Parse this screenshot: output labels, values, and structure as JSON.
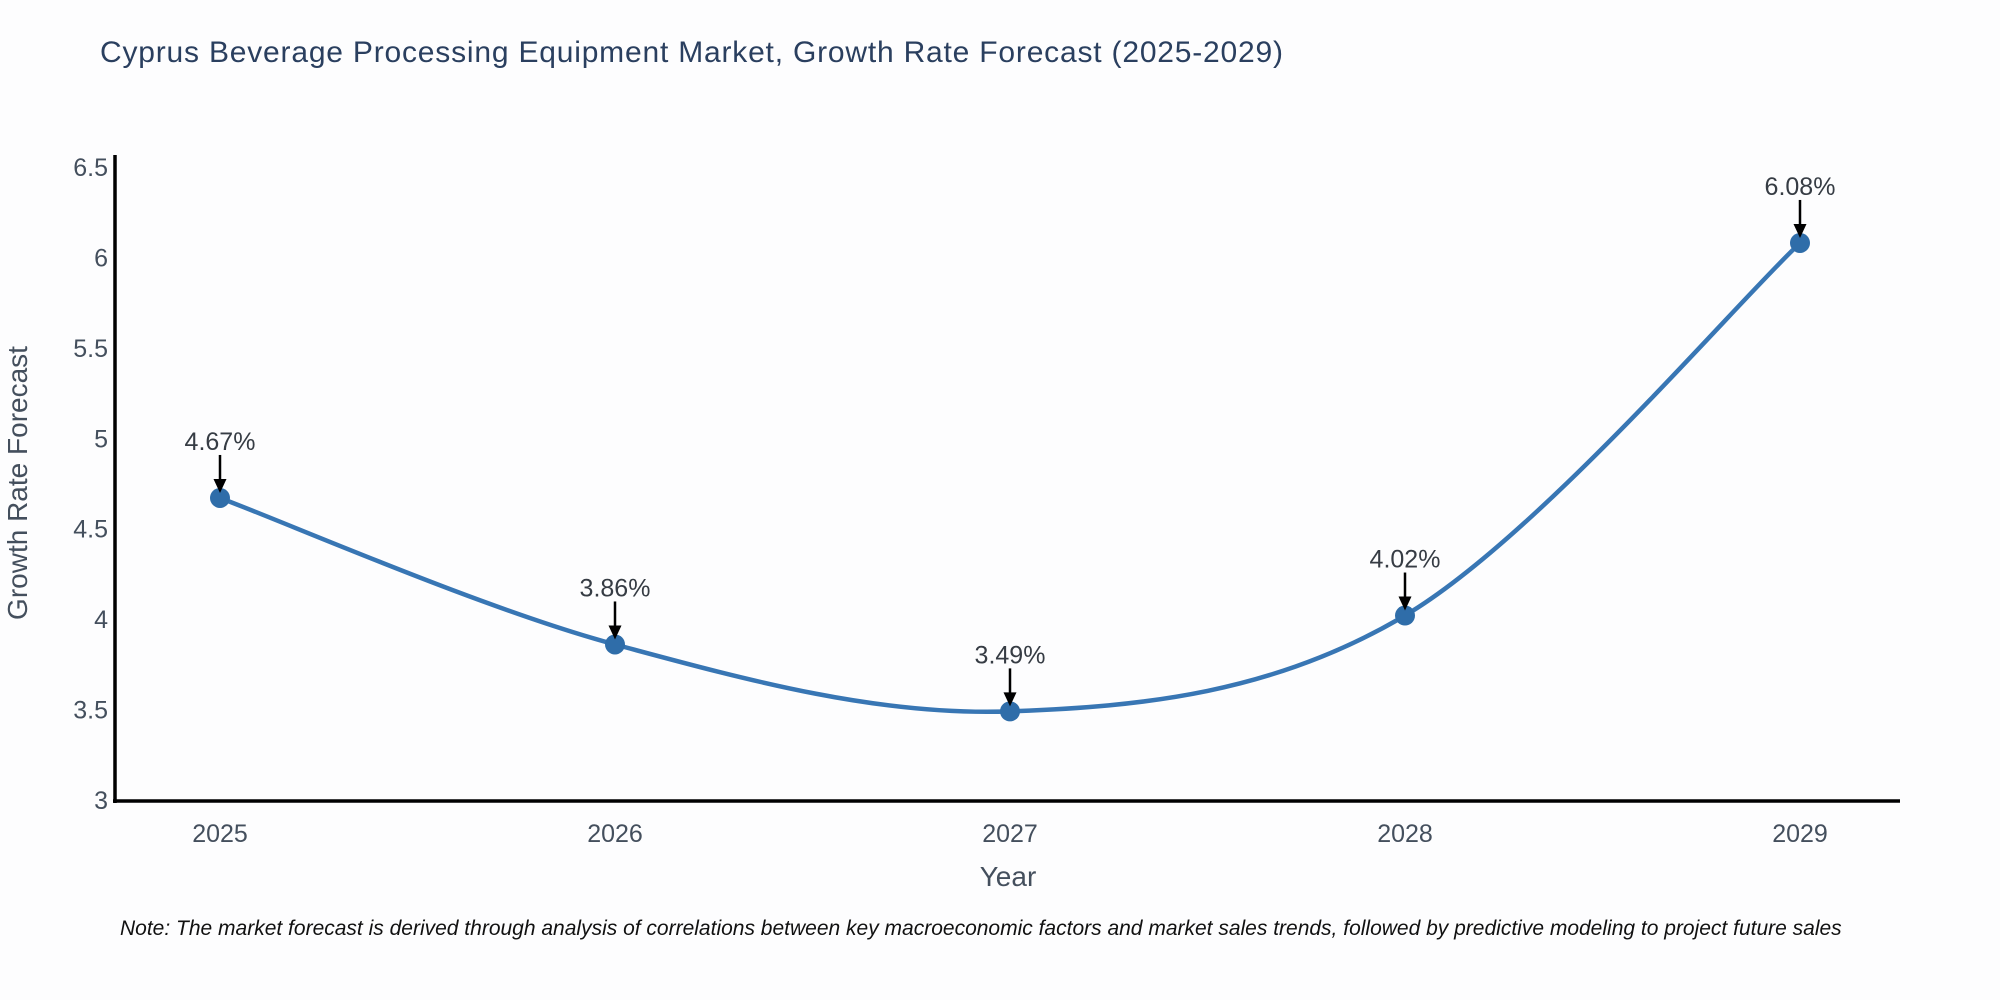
{
  "note": "Note: The market forecast is derived through analysis of correlations between key macroeconomic factors and market sales trends, followed by predictive modeling to project future sales",
  "chart_data": {
    "type": "line",
    "line_shape": "spline",
    "title": "Cyprus Beverage Processing Equipment Market, Growth Rate Forecast (2025-2029)",
    "xlabel": "Year",
    "ylabel": "Growth Rate Forecast",
    "categories": [
      "2025",
      "2026",
      "2027",
      "2028",
      "2029"
    ],
    "series": [
      {
        "name": "Growth Rate Forecast",
        "values": [
          4.67,
          3.86,
          3.49,
          4.02,
          6.08
        ],
        "point_labels": [
          "4.67%",
          "3.86%",
          "3.49%",
          "4.02%",
          "6.08%"
        ]
      }
    ],
    "ylim": [
      3,
      6.5
    ],
    "yticks": [
      3,
      3.5,
      4,
      4.5,
      5,
      5.5,
      6,
      6.5
    ],
    "grid": false,
    "legend": "none",
    "annotations": "percent value label with downward black arrow above each data point",
    "colors": {
      "line": "#3876b4",
      "marker": "#2f6da9",
      "axis": "#000000",
      "tick_label": "#444f5d",
      "title": "#2a3f5f",
      "annotation": "#363c44",
      "arrow": "#000000",
      "note": "#111111",
      "background": "#fdfdfe"
    }
  }
}
